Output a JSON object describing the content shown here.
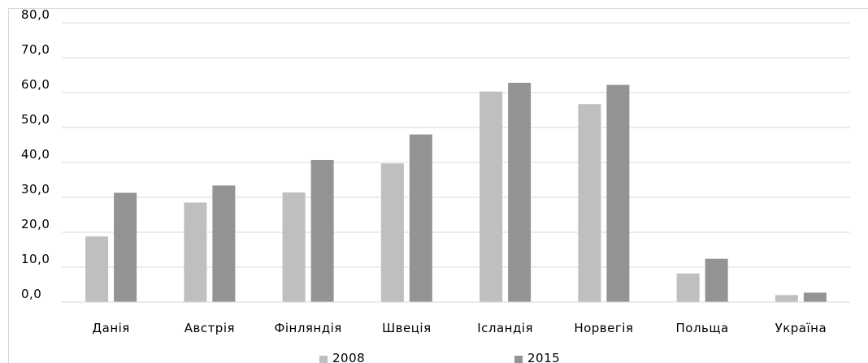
{
  "chart_data": {
    "type": "bar",
    "categories": [
      "Данія",
      "Австрія",
      "Фінляндія",
      "Швеція",
      "Ісландія",
      "Норвегія",
      "Польща",
      "Україна"
    ],
    "series": [
      {
        "name": "2008",
        "values": [
          18.8,
          28.5,
          31.4,
          39.7,
          60.3,
          56.7,
          8.2,
          2.0
        ],
        "color": "#bfbfbf"
      },
      {
        "name": "2015",
        "values": [
          31.3,
          33.4,
          40.7,
          48.0,
          62.8,
          62.2,
          12.4,
          2.7
        ],
        "color": "#939393"
      }
    ],
    "y_tick_labels": [
      "0,0",
      "10,0",
      "20,0",
      "30,0",
      "40,0",
      "50,0",
      "60,0",
      "70,0",
      "80,0"
    ],
    "ylim": [
      0,
      80
    ],
    "grid": true,
    "legend_position": "bottom",
    "title": "",
    "xlabel": "",
    "ylabel": ""
  },
  "colors": {
    "grid": "#d9d9d9",
    "axis": "#d9d9d9"
  }
}
